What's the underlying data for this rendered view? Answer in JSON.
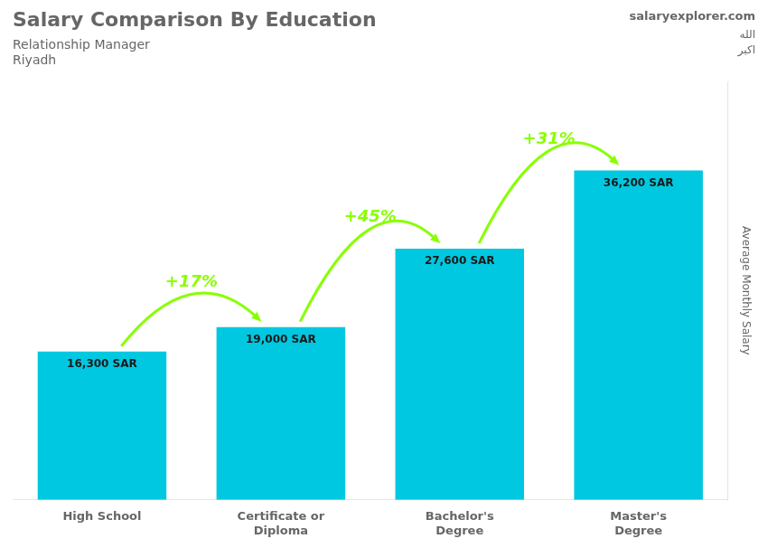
{
  "chart_data": {
    "type": "bar",
    "title": "Salary Comparison By Education",
    "subtitle": [
      "Relationship Manager",
      "Riyadh"
    ],
    "ylabel": "Average Monthly Salary",
    "categories": [
      "High School",
      "Certificate or\nDiploma",
      "Bachelor's\nDegree",
      "Master's\nDegree"
    ],
    "values": [
      16300,
      19000,
      27600,
      36200
    ],
    "value_labels": [
      "16,300 SAR",
      "19,000 SAR",
      "27,600 SAR",
      "36,200 SAR"
    ],
    "data_labels": true,
    "color": "#00c8e0",
    "ylim": [
      0,
      46000
    ],
    "grid": false,
    "tick_labels": "x",
    "annotations": [
      {
        "text": "+17%",
        "from": "High School",
        "to": "Certificate or\nDiploma",
        "color": "#88ff00"
      },
      {
        "text": "+45%",
        "from": "Certificate or\nDiploma",
        "to": "Bachelor's\nDegree",
        "color": "#88ff00"
      },
      {
        "text": "+31%",
        "from": "Bachelor's\nDegree",
        "to": "Master's\nDegree",
        "color": "#88ff00"
      },
      {
        "text": "salaryexplorer.com"
      },
      {
        "text": "الله\nاكبر"
      }
    ]
  }
}
